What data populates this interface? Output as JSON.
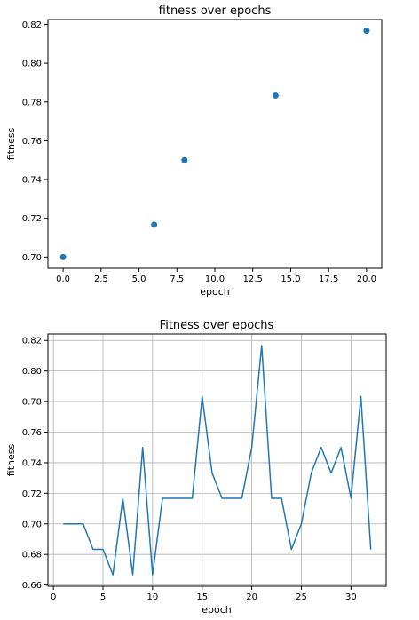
{
  "chart_data": [
    {
      "type": "scatter",
      "title": "fitness over epochs",
      "xlabel": "epoch",
      "ylabel": "fitness",
      "xlim": [
        -1.0,
        21.0
      ],
      "ylim": [
        0.6942,
        0.8225
      ],
      "xticks": [
        0.0,
        2.5,
        5.0,
        7.5,
        10.0,
        12.5,
        15.0,
        17.5,
        20.0
      ],
      "xtick_labels": [
        "0.0",
        "2.5",
        "5.0",
        "7.5",
        "10.0",
        "12.5",
        "15.0",
        "17.5",
        "20.0"
      ],
      "yticks": [
        0.7,
        0.72,
        0.74,
        0.76,
        0.78,
        0.8,
        0.82
      ],
      "ytick_labels": [
        "0.70",
        "0.72",
        "0.74",
        "0.76",
        "0.78",
        "0.80",
        "0.82"
      ],
      "grid": false,
      "color": "#1f77b4",
      "x": [
        0,
        6,
        8,
        14,
        20
      ],
      "y": [
        0.7,
        0.7167,
        0.75,
        0.7833,
        0.8167
      ]
    },
    {
      "type": "line",
      "title": "Fitness over epochs",
      "xlabel": "epoch",
      "ylabel": "fitness",
      "xlim": [
        -0.55,
        33.55
      ],
      "ylim": [
        0.6592,
        0.8242
      ],
      "xticks": [
        0,
        5,
        10,
        15,
        20,
        25,
        30
      ],
      "xtick_labels": [
        "0",
        "5",
        "10",
        "15",
        "20",
        "25",
        "30"
      ],
      "yticks": [
        0.66,
        0.68,
        0.7,
        0.72,
        0.74,
        0.76,
        0.78,
        0.8,
        0.82
      ],
      "ytick_labels": [
        "0.66",
        "0.68",
        "0.70",
        "0.72",
        "0.74",
        "0.76",
        "0.78",
        "0.80",
        "0.82"
      ],
      "grid": true,
      "color": "#1f77b4",
      "x": [
        1,
        2,
        3,
        4,
        5,
        6,
        7,
        8,
        9,
        10,
        11,
        12,
        13,
        14,
        15,
        16,
        17,
        18,
        19,
        20,
        21,
        22,
        23,
        24,
        25,
        26,
        27,
        28,
        29,
        30,
        31,
        32
      ],
      "y": [
        0.7,
        0.7,
        0.7,
        0.6833,
        0.6833,
        0.6667,
        0.7167,
        0.6667,
        0.75,
        0.6667,
        0.7167,
        0.7167,
        0.7167,
        0.7167,
        0.7833,
        0.7333,
        0.7167,
        0.7167,
        0.7167,
        0.75,
        0.8167,
        0.7167,
        0.7167,
        0.6833,
        0.7,
        0.7333,
        0.75,
        0.7333,
        0.75,
        0.7167,
        0.7833,
        0.6833
      ]
    }
  ]
}
